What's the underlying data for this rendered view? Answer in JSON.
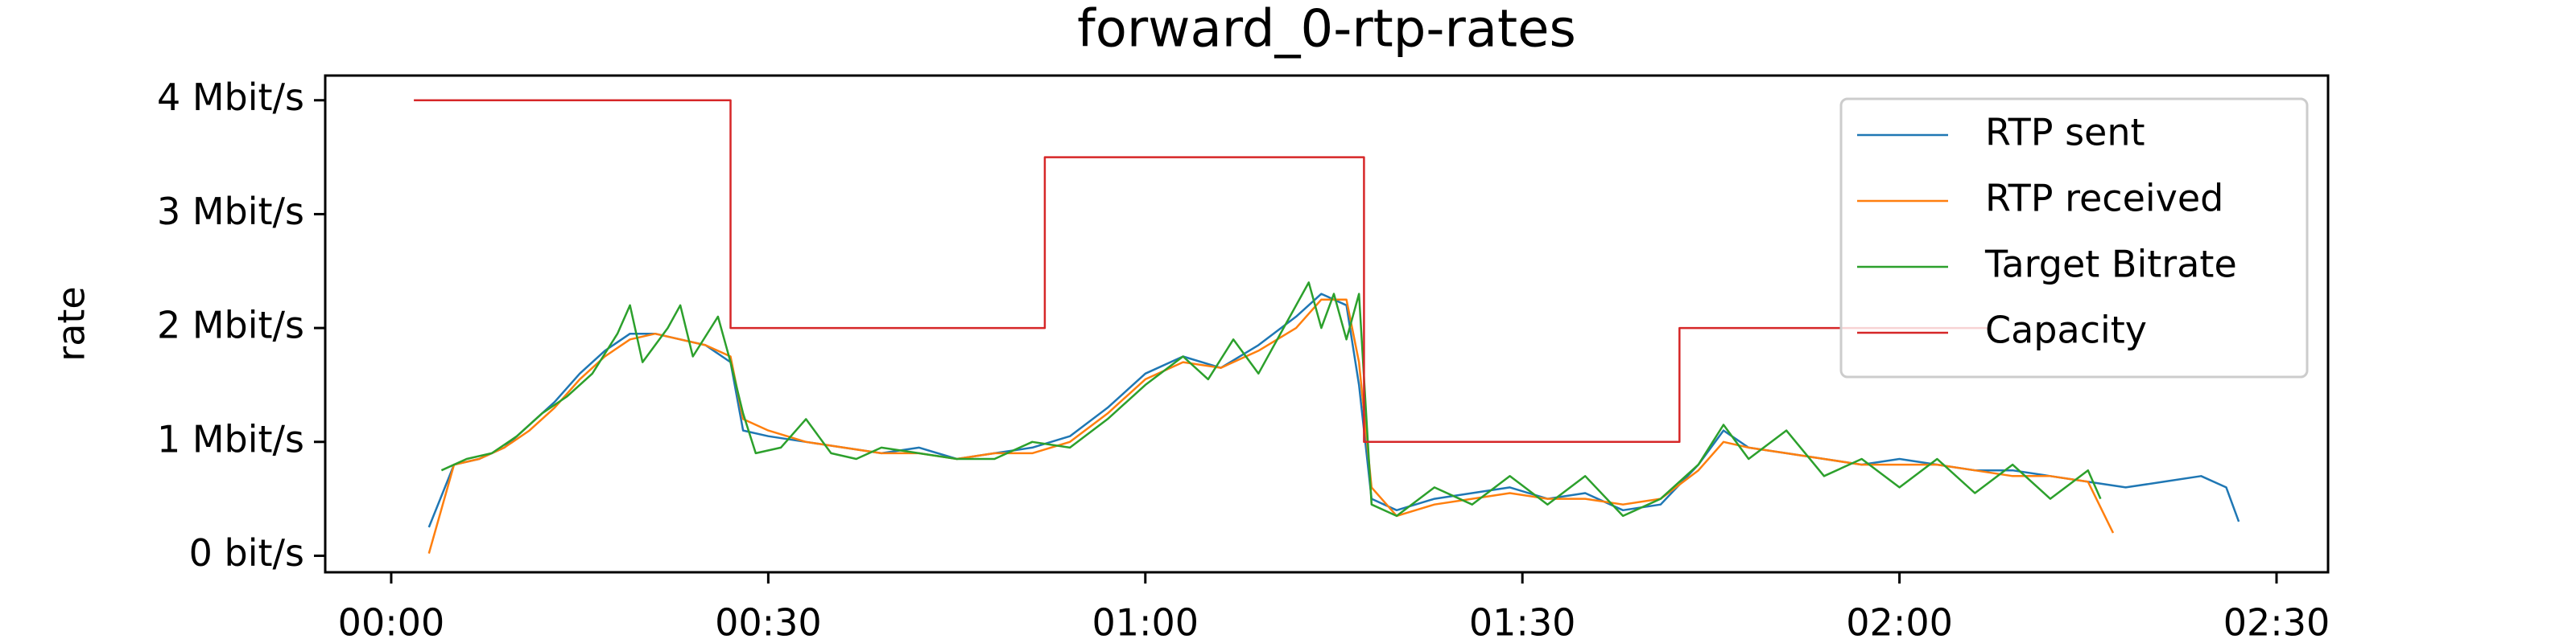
{
  "chart_data": {
    "type": "line",
    "title": "forward_0-rtp-rates",
    "ylabel": "rate",
    "xlim": [
      -5.25,
      154.1
    ],
    "ylim": [
      -0.145,
      4.217
    ],
    "xticks": [
      {
        "value": 0,
        "label": "00:00"
      },
      {
        "value": 30,
        "label": "00:30"
      },
      {
        "value": 60,
        "label": "01:00"
      },
      {
        "value": 90,
        "label": "01:30"
      },
      {
        "value": 120,
        "label": "02:00"
      },
      {
        "value": 150,
        "label": "02:30"
      }
    ],
    "yticks": [
      {
        "value": 0,
        "label": "0 bit/s"
      },
      {
        "value": 1,
        "label": "1 Mbit/s"
      },
      {
        "value": 2,
        "label": "2 Mbit/s"
      },
      {
        "value": 3,
        "label": "3 Mbit/s"
      },
      {
        "value": 4,
        "label": "4 Mbit/s"
      }
    ],
    "legend": "upper right",
    "series": [
      {
        "name": "RTP sent",
        "color": "#1f77b4",
        "x": [
          3,
          5,
          7,
          9,
          11,
          13,
          15,
          17,
          19,
          21,
          23,
          25,
          27,
          28,
          30,
          33,
          36,
          39,
          42,
          45,
          48,
          51,
          54,
          57,
          60,
          63,
          66,
          69,
          72,
          74,
          76,
          77,
          78,
          80,
          83,
          86,
          89,
          92,
          95,
          98,
          101,
          104,
          106,
          108,
          111,
          114,
          117,
          120,
          123,
          126,
          129,
          132,
          135,
          138,
          141,
          144,
          146,
          147
        ],
        "values": [
          0.25,
          0.8,
          0.85,
          0.95,
          1.15,
          1.35,
          1.6,
          1.8,
          1.95,
          1.95,
          1.9,
          1.85,
          1.7,
          1.1,
          1.05,
          1.0,
          0.95,
          0.9,
          0.95,
          0.85,
          0.9,
          0.95,
          1.05,
          1.3,
          1.6,
          1.75,
          1.65,
          1.85,
          2.1,
          2.3,
          2.2,
          1.5,
          0.5,
          0.4,
          0.5,
          0.55,
          0.6,
          0.5,
          0.55,
          0.4,
          0.45,
          0.8,
          1.1,
          0.95,
          0.9,
          0.85,
          0.8,
          0.85,
          0.8,
          0.75,
          0.75,
          0.7,
          0.65,
          0.6,
          0.65,
          0.7,
          0.6,
          0.3
        ]
      },
      {
        "name": "RTP received",
        "color": "#ff7f0e",
        "x": [
          3,
          5,
          7,
          9,
          11,
          13,
          15,
          17,
          19,
          21,
          23,
          25,
          27,
          28,
          30,
          33,
          36,
          39,
          42,
          45,
          48,
          51,
          54,
          57,
          60,
          63,
          66,
          69,
          72,
          74,
          76,
          77,
          78,
          80,
          83,
          86,
          89,
          92,
          95,
          98,
          101,
          104,
          106,
          108,
          111,
          114,
          117,
          120,
          123,
          126,
          129,
          132,
          135,
          137
        ],
        "values": [
          0.02,
          0.8,
          0.85,
          0.95,
          1.1,
          1.3,
          1.55,
          1.75,
          1.9,
          1.95,
          1.9,
          1.85,
          1.75,
          1.2,
          1.1,
          1.0,
          0.95,
          0.9,
          0.9,
          0.85,
          0.9,
          0.9,
          1.0,
          1.25,
          1.55,
          1.7,
          1.65,
          1.8,
          2.0,
          2.25,
          2.25,
          1.7,
          0.6,
          0.35,
          0.45,
          0.5,
          0.55,
          0.5,
          0.5,
          0.45,
          0.5,
          0.75,
          1.0,
          0.95,
          0.9,
          0.85,
          0.8,
          0.8,
          0.8,
          0.75,
          0.7,
          0.7,
          0.65,
          0.2
        ]
      },
      {
        "name": "Target Bitrate",
        "color": "#2ca02c",
        "x": [
          4,
          6,
          8,
          10,
          12,
          14,
          16,
          18,
          19,
          20,
          22,
          23,
          24,
          26,
          27,
          28,
          29,
          31,
          33,
          35,
          37,
          39,
          42,
          45,
          48,
          51,
          54,
          57,
          60,
          63,
          65,
          67,
          69,
          71,
          73,
          74,
          75,
          76,
          77,
          78,
          80,
          83,
          86,
          89,
          92,
          95,
          98,
          101,
          104,
          106,
          108,
          111,
          114,
          117,
          120,
          123,
          126,
          129,
          132,
          135,
          136
        ],
        "values": [
          0.75,
          0.85,
          0.9,
          1.05,
          1.25,
          1.4,
          1.6,
          1.95,
          2.2,
          1.7,
          2.0,
          2.2,
          1.75,
          2.1,
          1.7,
          1.25,
          0.9,
          0.95,
          1.2,
          0.9,
          0.85,
          0.95,
          0.9,
          0.85,
          0.85,
          1.0,
          0.95,
          1.2,
          1.5,
          1.75,
          1.55,
          1.9,
          1.6,
          2.0,
          2.4,
          2.0,
          2.3,
          1.9,
          2.3,
          0.45,
          0.35,
          0.6,
          0.45,
          0.7,
          0.45,
          0.7,
          0.35,
          0.5,
          0.8,
          1.15,
          0.85,
          1.1,
          0.7,
          0.85,
          0.6,
          0.85,
          0.55,
          0.8,
          0.5,
          0.75,
          0.5
        ]
      },
      {
        "name": "Capacity",
        "color": "#d62728",
        "x": [
          1.8,
          27,
          27,
          52,
          52,
          77.4,
          77.4,
          102.5,
          102.5,
          127
        ],
        "values": [
          4,
          4,
          2,
          2,
          3.5,
          3.5,
          1,
          1,
          2,
          2
        ]
      }
    ]
  }
}
